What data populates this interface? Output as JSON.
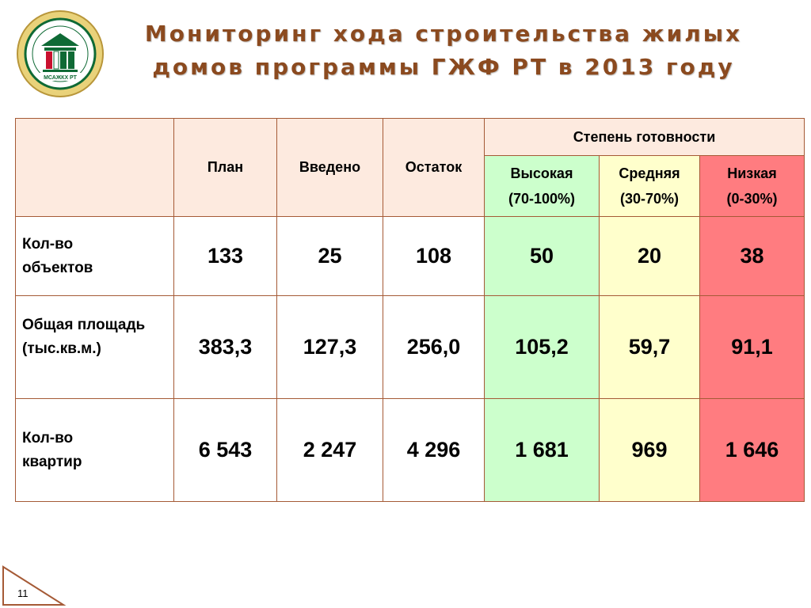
{
  "logo": {
    "text": "МСАЖКХ РТ"
  },
  "title": {
    "line1": "Мониторинг хода строительства жилых",
    "line2": "домов программы ГЖФ РТ в 2013 году"
  },
  "table": {
    "headers": {
      "plan": "План",
      "introduced": "Введено",
      "remainder": "Остаток",
      "readiness": "Степень готовности",
      "high": "Высокая",
      "high_range": "(70-100%)",
      "medium": "Средняя",
      "medium_range": "(30-70%)",
      "low": "Низкая",
      "low_range": "(0-30%)"
    },
    "rows": [
      {
        "label1": "Кол-во",
        "label2": "объектов",
        "plan": "133",
        "introduced": "25",
        "remainder": "108",
        "high": "50",
        "medium": "20",
        "low": "38"
      },
      {
        "label1": "Общая площадь",
        "label2": "(тыс.кв.м.)",
        "plan": "383,3",
        "introduced": "127,3",
        "remainder": "256,0",
        "high": "105,2",
        "medium": "59,7",
        "low": "91,1"
      },
      {
        "label1": "Кол-во",
        "label2": "квартир",
        "plan": "6 543",
        "introduced": "2 247",
        "remainder": "4 296",
        "high": "1 681",
        "medium": "969",
        "low": "1 646"
      }
    ]
  },
  "colors": {
    "title": "#8b4a1f",
    "border": "#a55a36",
    "header_bg": "#fdeadf",
    "high_bg": "#ccffcc",
    "medium_bg": "#ffffcc",
    "low_bg": "#ff7c80"
  },
  "page_number": "11"
}
